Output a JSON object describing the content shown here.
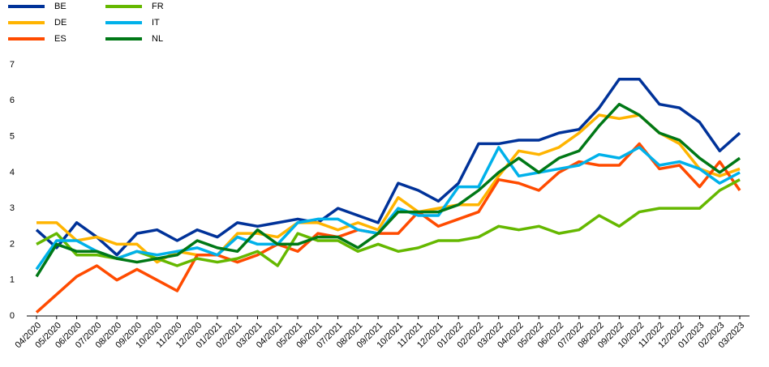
{
  "chart_data": {
    "type": "line",
    "categories": [
      "04/2020",
      "05/2020",
      "06/2020",
      "07/2020",
      "08/2020",
      "09/2020",
      "10/2020",
      "11/2020",
      "12/2020",
      "01/2021",
      "02/2021",
      "03/2021",
      "04/2021",
      "05/2021",
      "06/2021",
      "07/2021",
      "08/2021",
      "09/2021",
      "10/2021",
      "11/2021",
      "12/2021",
      "01/2022",
      "02/2022",
      "03/2022",
      "04/2022",
      "05/2022",
      "06/2022",
      "07/2022",
      "08/2022",
      "09/2022",
      "10/2022",
      "11/2022",
      "12/2022",
      "01/2023",
      "02/2023",
      "03/2023"
    ],
    "series": [
      {
        "name": "BE",
        "color": "#003299",
        "values": [
          2.4,
          1.9,
          2.6,
          2.2,
          1.7,
          2.3,
          2.4,
          2.1,
          2.4,
          2.2,
          2.6,
          2.5,
          2.6,
          2.7,
          2.6,
          3.0,
          2.8,
          2.6,
          3.7,
          3.5,
          3.2,
          3.7,
          4.8,
          4.8,
          4.9,
          4.9,
          5.1,
          5.2,
          5.8,
          6.6,
          6.6,
          5.9,
          5.8,
          5.4,
          4.6,
          5.1
        ]
      },
      {
        "name": "DE",
        "color": "#ffb400",
        "values": [
          2.6,
          2.6,
          2.1,
          2.2,
          2.0,
          2.0,
          1.5,
          1.8,
          1.7,
          1.7,
          2.3,
          2.3,
          2.2,
          2.6,
          2.6,
          2.4,
          2.6,
          2.4,
          3.3,
          2.9,
          3.0,
          3.1,
          3.1,
          3.9,
          4.6,
          4.5,
          4.7,
          5.1,
          5.6,
          5.5,
          5.6,
          5.1,
          4.8,
          4.1,
          3.9,
          4.1
        ]
      },
      {
        "name": "ES",
        "color": "#ff4b00",
        "values": [
          0.1,
          0.6,
          1.1,
          1.4,
          1.0,
          1.3,
          1.0,
          0.7,
          1.7,
          1.7,
          1.5,
          1.7,
          2.0,
          1.8,
          2.3,
          2.2,
          2.4,
          2.3,
          2.3,
          2.9,
          2.5,
          2.7,
          2.9,
          3.8,
          3.7,
          3.5,
          4.0,
          4.3,
          4.2,
          4.2,
          4.8,
          4.1,
          4.2,
          3.6,
          4.3,
          3.5
        ]
      },
      {
        "name": "FR",
        "color": "#65b800",
        "values": [
          2.0,
          2.3,
          1.7,
          1.7,
          1.6,
          1.8,
          1.6,
          1.4,
          1.6,
          1.5,
          1.6,
          1.8,
          1.4,
          2.3,
          2.1,
          2.1,
          1.8,
          2.0,
          1.8,
          1.9,
          2.1,
          2.1,
          2.2,
          2.5,
          2.4,
          2.5,
          2.3,
          2.4,
          2.8,
          2.5,
          2.9,
          3.0,
          3.0,
          3.0,
          3.5,
          3.8
        ]
      },
      {
        "name": "IT",
        "color": "#00b1ea",
        "values": [
          1.3,
          2.1,
          2.1,
          1.8,
          1.6,
          1.8,
          1.7,
          1.8,
          1.9,
          1.7,
          2.2,
          2.0,
          2.0,
          2.6,
          2.7,
          2.7,
          2.4,
          2.3,
          3.0,
          2.8,
          2.8,
          3.6,
          3.6,
          4.7,
          3.9,
          4.0,
          4.1,
          4.2,
          4.5,
          4.4,
          4.7,
          4.2,
          4.3,
          4.1,
          3.7,
          4.0
        ]
      },
      {
        "name": "NL",
        "color": "#007816",
        "values": [
          1.1,
          2.0,
          1.8,
          1.8,
          1.6,
          1.5,
          1.6,
          1.7,
          2.1,
          1.9,
          1.8,
          2.4,
          2.0,
          2.0,
          2.2,
          2.2,
          1.9,
          2.3,
          2.9,
          2.9,
          2.9,
          3.1,
          3.5,
          4.0,
          4.4,
          4.0,
          4.4,
          4.6,
          5.3,
          5.9,
          5.6,
          5.1,
          4.9,
          4.4,
          4.0,
          4.4
        ]
      }
    ],
    "ylim": [
      0,
      7
    ],
    "yticks": [
      0,
      1,
      2,
      3,
      4,
      5,
      6,
      7
    ],
    "grid": false,
    "legend": "top-left"
  }
}
